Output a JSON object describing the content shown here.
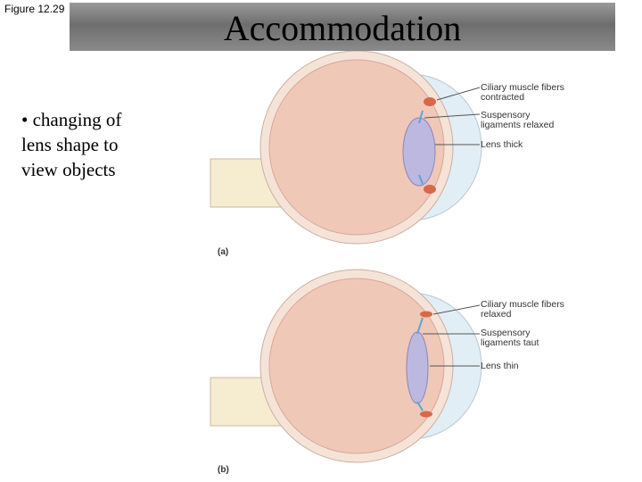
{
  "figure_label": "Figure 12.29",
  "title": "Accommodation",
  "bullet": "• changing of lens shape to view objects",
  "panels": [
    {
      "label": "(a)",
      "annotations": [
        "Ciliary muscle fibers contracted",
        "Suspensory ligaments relaxed",
        "Lens thick"
      ]
    },
    {
      "label": "(b)",
      "annotations": [
        "Ciliary muscle fibers relaxed",
        "Suspensory ligaments taut",
        "Lens thin"
      ]
    }
  ]
}
